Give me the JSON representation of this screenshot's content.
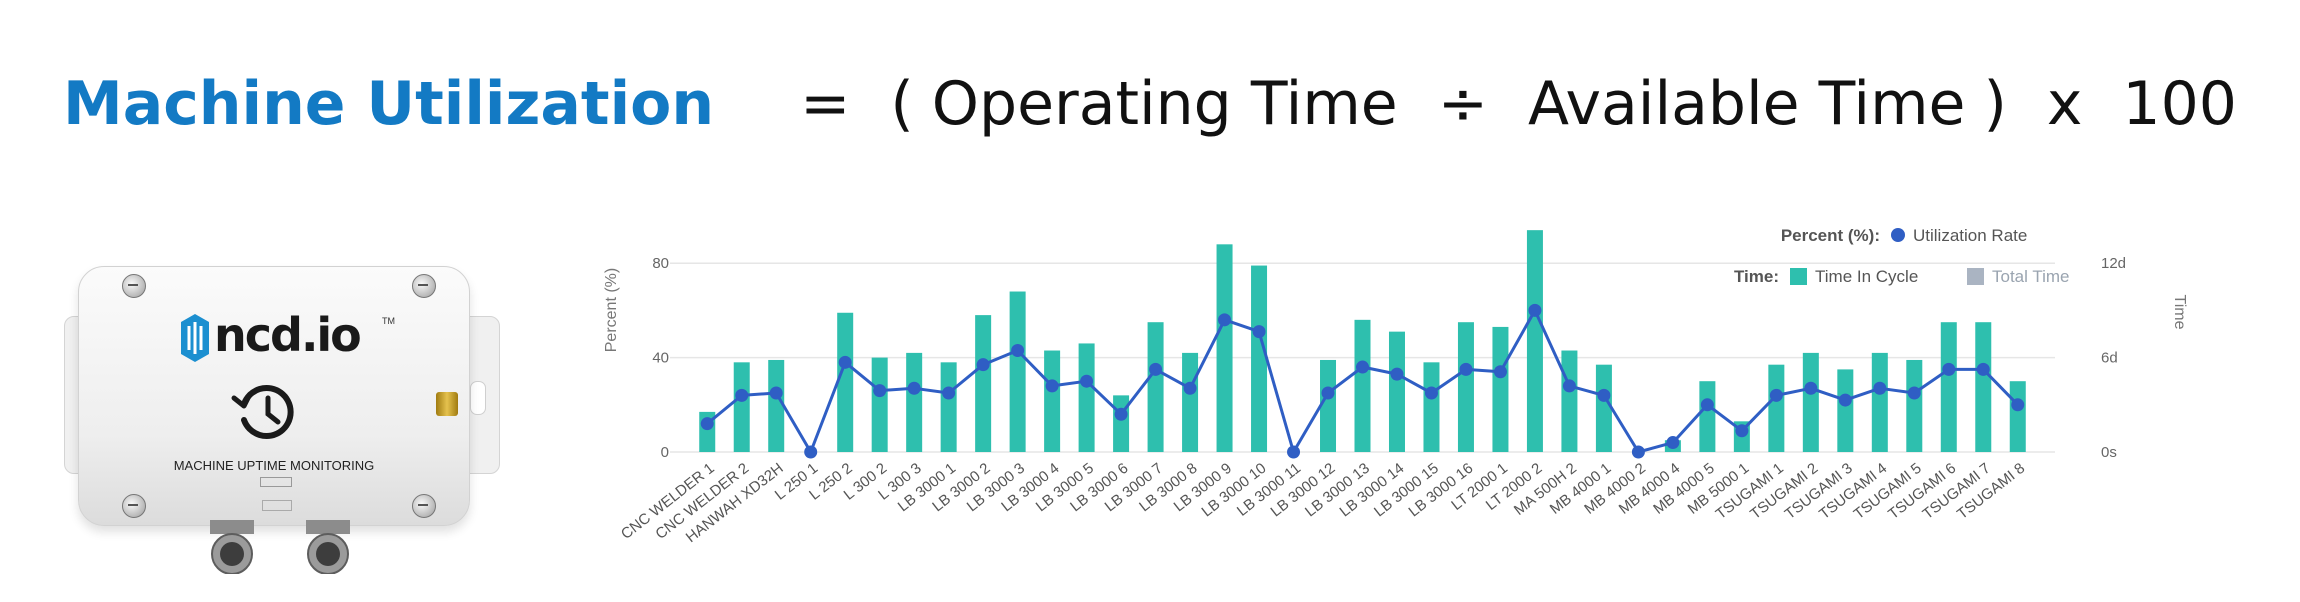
{
  "formula": {
    "highlight": "Machine Utilization",
    "equals": "=",
    "open_paren": "(",
    "numerator": "Operating Time",
    "divide": "÷",
    "denominator": "Available Time",
    "close_paren": ")",
    "times": "x",
    "multiplier": "100"
  },
  "device": {
    "brand": "ncd.io",
    "trademark": "TM",
    "label": "MACHINE UPTIME MONITORING",
    "icon": "clock-rewind-icon",
    "colors": {
      "brand_accent": "#1c8fd0"
    }
  },
  "colors": {
    "formula_highlight": "#137ac4",
    "bar": "#2ebfae",
    "line": "#2f5ec4",
    "total_time_legend": "#aab4c2",
    "grid": "#e6e6e6"
  },
  "chart_data": {
    "type": "bar",
    "categories": [
      "CNC WELDER 1",
      "CNC WELDER 2",
      "HANWAH XD32H",
      "L 250 1",
      "L 250 2",
      "L 300 2",
      "L 300 3",
      "LB 3000 1",
      "LB 3000 2",
      "LB 3000 3",
      "LB 3000 4",
      "LB 3000 5",
      "LB 3000 6",
      "LB 3000 7",
      "LB 3000 8",
      "LB 3000 9",
      "LB 3000 10",
      "LB 3000 11",
      "LB 3000 12",
      "LB 3000 13",
      "LB 3000 14",
      "LB 3000 15",
      "LB 3000 16",
      "LT 2000 1",
      "LT 2000 2",
      "MA 500H 2",
      "MB 4000 1",
      "MB 4000 2",
      "MB 4000 4",
      "MB 4000 5",
      "MB 5000 1",
      "TSUGAMI 1",
      "TSUGAMI 2",
      "TSUGAMI 3",
      "TSUGAMI 4",
      "TSUGAMI 5",
      "TSUGAMI 6",
      "TSUGAMI 7",
      "TSUGAMI 8"
    ],
    "series": [
      {
        "name": "Time In Cycle",
        "values": [
          17,
          38,
          39,
          0,
          59,
          40,
          42,
          38,
          58,
          68,
          43,
          46,
          24,
          55,
          42,
          88,
          79,
          0,
          39,
          56,
          51,
          38,
          55,
          53,
          94,
          43,
          37,
          0,
          5,
          30,
          13,
          37,
          42,
          35,
          42,
          39,
          55,
          55,
          30
        ]
      },
      {
        "name": "Utilization Rate",
        "values": [
          12,
          24,
          25,
          0,
          38,
          26,
          27,
          25,
          37,
          43,
          28,
          30,
          16,
          35,
          27,
          56,
          51,
          0,
          25,
          36,
          33,
          25,
          35,
          34,
          60,
          28,
          24,
          0,
          4,
          20,
          9,
          24,
          27,
          22,
          27,
          25,
          35,
          35,
          20
        ]
      }
    ],
    "ylabel": "Percent (%)",
    "y2label": "Time",
    "ylim": [
      0,
      95
    ],
    "yticks": [
      "0",
      "40",
      "80"
    ],
    "y2ticks": [
      "0s",
      "6d",
      "12d"
    ],
    "grid": true,
    "legend": {
      "placement": "top-right",
      "percent_label": "Percent (%):",
      "time_label": "Time:",
      "entries": [
        "Utilization Rate",
        "Time In Cycle",
        "Total Time"
      ]
    }
  }
}
